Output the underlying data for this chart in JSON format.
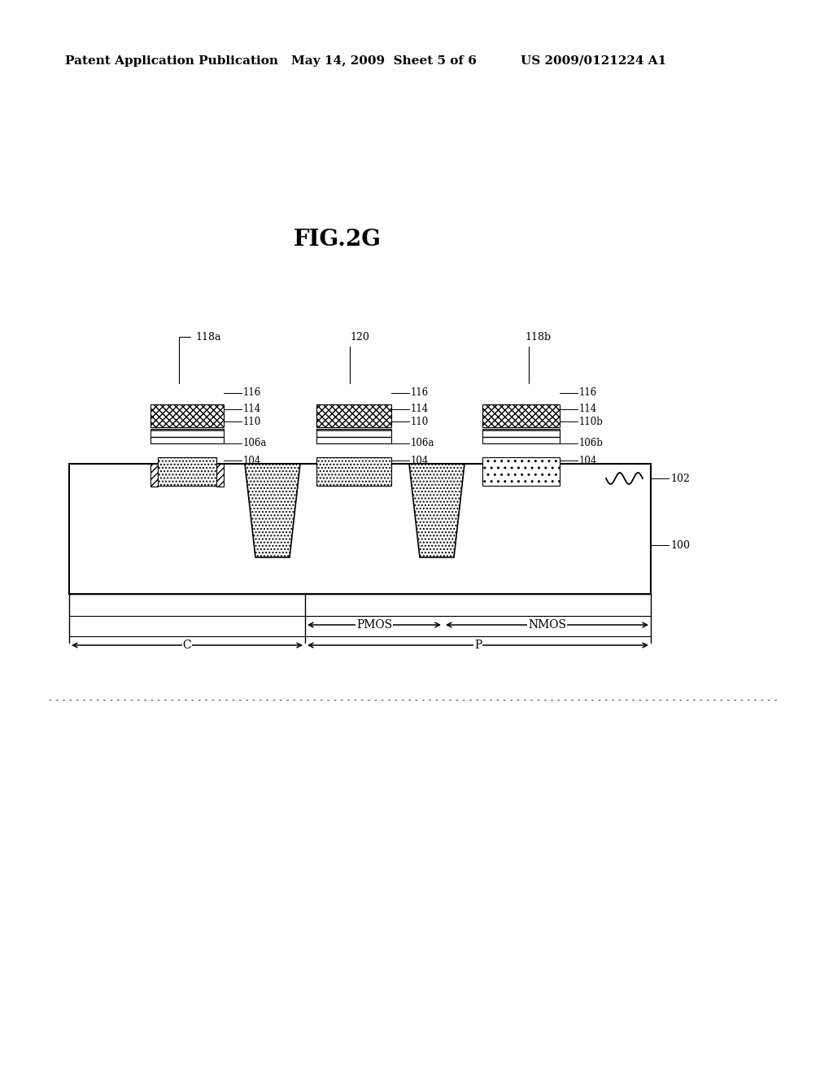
{
  "header_left": "Patent Application Publication",
  "header_mid": "May 14, 2009  Sheet 5 of 6",
  "header_right": "US 2009/0121224 A1",
  "fig_label": "FIG.2G",
  "bg_color": "#ffffff"
}
